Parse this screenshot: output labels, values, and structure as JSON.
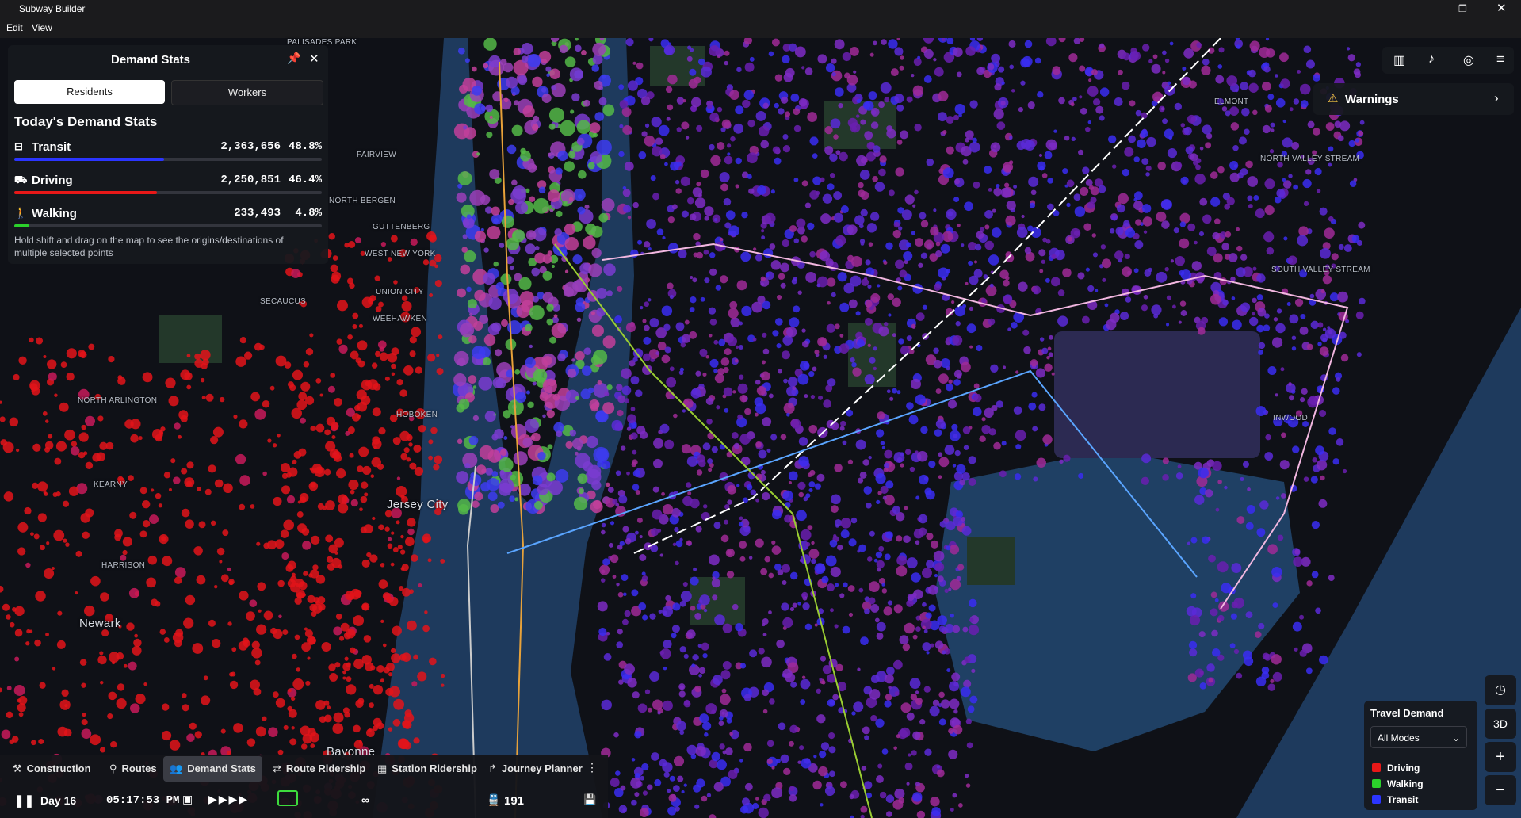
{
  "window": {
    "title": "Subway Builder",
    "menu": [
      "Edit",
      "View"
    ]
  },
  "panel": {
    "title": "Demand Stats",
    "tabs": [
      "Residents",
      "Workers"
    ],
    "heading": "Today's Demand Stats",
    "stats": [
      {
        "name": "Transit",
        "count": "2,363,656",
        "share": 48.8,
        "share_label": "48.8%",
        "color": "#2b35ff"
      },
      {
        "name": "Driving",
        "count": "2,250,851",
        "share": 46.4,
        "share_label": "46.4%",
        "color": "#e81818"
      },
      {
        "name": "Walking",
        "count": "233,493",
        "share": 4.8,
        "share_label": "4.8%",
        "color": "#2bd12b"
      }
    ],
    "hint": "Hold shift and drag on the map to see the origins/destinations of multiple selected points"
  },
  "warnings": "Warnings",
  "legend": {
    "title": "Travel Demand",
    "select": "All Modes",
    "items": [
      {
        "name": "Driving",
        "color": "#e81818"
      },
      {
        "name": "Walking",
        "color": "#2bd12b"
      },
      {
        "name": "Transit",
        "color": "#2b35ff"
      }
    ]
  },
  "controls": {
    "view_3d": "3D"
  },
  "toolbar": {
    "tabs": [
      "Construction",
      "Routes",
      "Demand Stats",
      "Route Ridership",
      "Station Ridership",
      "Journey Planner"
    ],
    "day": "Day 16",
    "time": "05:17:53 PM",
    "speed": "∞",
    "trains": "191"
  },
  "map_labels": [
    "PALISADES PARK",
    "FAIRVIEW",
    "NORTH BERGEN",
    "GUTTENBERG",
    "WEST NEW YORK",
    "UNION CITY",
    "WEEHAWKEN",
    "SECAUCUS",
    "HOBOKEN",
    "NORTH ARLINGTON",
    "KEARNY",
    "HARRISON",
    "Newark",
    "Jersey City",
    "Bayonne",
    "ELMONT",
    "NORTH VALLEY STREAM",
    "SOUTH VALLEY STREAM",
    "INWOOD"
  ]
}
